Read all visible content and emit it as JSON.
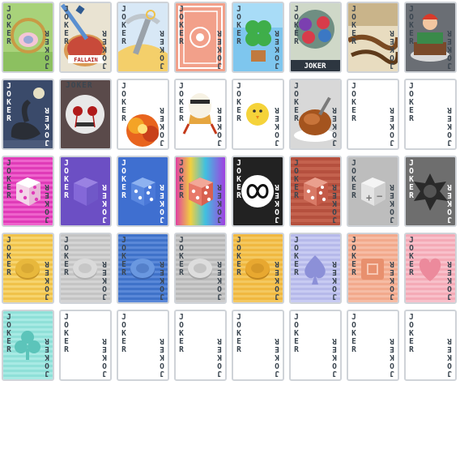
{
  "collection": {
    "label": "JOKER",
    "cards": [
      {
        "id": "basket"
      },
      {
        "id": "sword-pie",
        "art_text": "FALLAIN"
      },
      {
        "id": "pickaxe"
      },
      {
        "id": "red-back"
      },
      {
        "id": "clover"
      },
      {
        "id": "tree"
      },
      {
        "id": "rope"
      },
      {
        "id": "cake"
      },
      {
        "id": "swan"
      },
      {
        "id": "skull"
      },
      {
        "id": "explosion"
      },
      {
        "id": "egg"
      },
      {
        "id": "chick"
      },
      {
        "id": "turkey"
      },
      {
        "id": "blank"
      },
      {
        "id": "blank"
      },
      {
        "id": "dice-magenta"
      },
      {
        "id": "dice-purple"
      },
      {
        "id": "dice-blue"
      },
      {
        "id": "dice-rainbow"
      },
      {
        "id": "infinity"
      },
      {
        "id": "dice-red"
      },
      {
        "id": "plus-minus"
      },
      {
        "id": "spiked"
      },
      {
        "id": "token-yellow"
      },
      {
        "id": "token-gray"
      },
      {
        "id": "token-blue"
      },
      {
        "id": "token-silver"
      },
      {
        "id": "token-gold"
      },
      {
        "id": "spade-lavender"
      },
      {
        "id": "square-salmon"
      },
      {
        "id": "heart-pink"
      },
      {
        "id": "club-teal"
      },
      {
        "id": "blank"
      },
      {
        "id": "blank"
      },
      {
        "id": "blank"
      },
      {
        "id": "blank"
      },
      {
        "id": "blank"
      },
      {
        "id": "blank"
      },
      {
        "id": "blank"
      }
    ]
  },
  "colors": {
    "label_dark": "#3b4650",
    "card_border": "#cfd3d8",
    "yellow": "#f0c24a",
    "gray": "#c4c4c4",
    "blue": "#3f72c9",
    "lavender": "#b6b9ea",
    "salmon": "#f2a98c",
    "pink": "#f4aab6",
    "teal": "#8fe0d8",
    "magenta": "#e03bb8",
    "purple": "#6c4fc4",
    "red": "#b5503e"
  }
}
